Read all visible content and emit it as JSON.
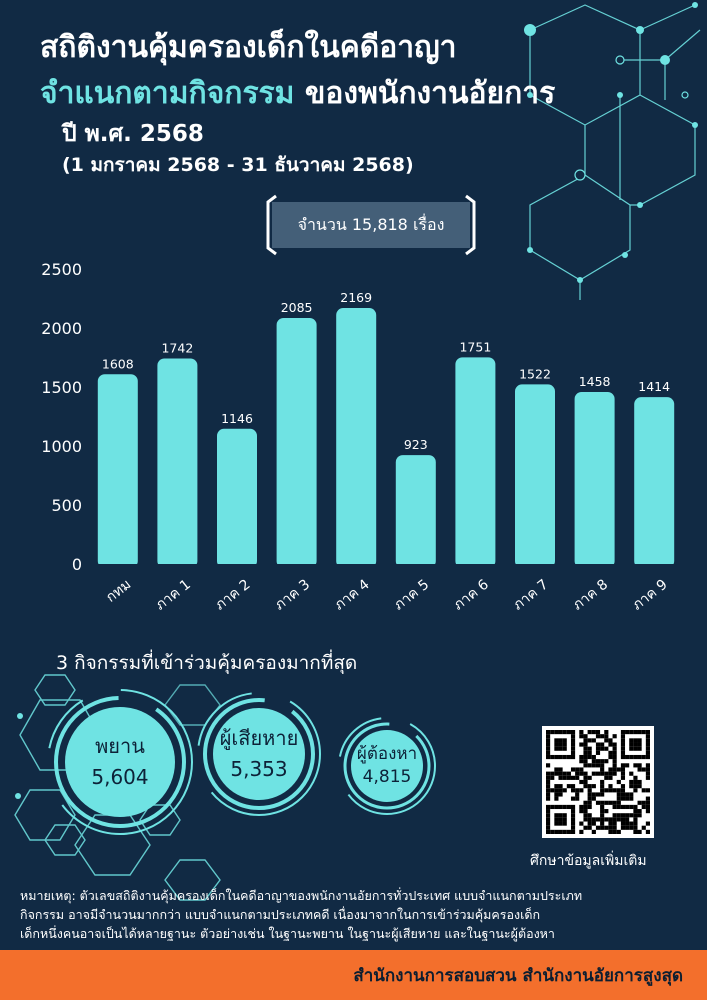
{
  "header": {
    "title_line1": "สถิติงานคุ้มครองเด็กในคดีอาญา",
    "title_line2_accent": "จำแนกตามกิจกรรม",
    "title_line2_rest": "ของพนักงานอัยการ",
    "year": "ปี พ.ศ. 2568",
    "date_range": "(1 มกราคม 2568 - 31 ธันวาคม 2568)",
    "total": "จำนวน 15,818 เรื่อง"
  },
  "colors": {
    "background": "#112a44",
    "accent": "#6fe3e3",
    "footer": "#f36f2c"
  },
  "chart_data": {
    "type": "bar",
    "categories": [
      "กทม",
      "ภาค 1",
      "ภาค 2",
      "ภาค 3",
      "ภาค 4",
      "ภาค 5",
      "ภาค 6",
      "ภาค 7",
      "ภาค 8",
      "ภาค 9"
    ],
    "values": [
      1608,
      1742,
      1146,
      2085,
      2169,
      923,
      1751,
      1522,
      1458,
      1414
    ],
    "yticks": [
      0,
      500,
      1000,
      1500,
      2000,
      2500
    ],
    "ylim": [
      0,
      2500
    ],
    "grid": false,
    "bar_color": "#6fe3e3",
    "data_labels": true
  },
  "top3": {
    "heading": "3 กิจกรรมที่เข้าร่วมคุ้มครองมากที่สุด",
    "items": [
      {
        "label": "พยาน",
        "value": "5,604"
      },
      {
        "label": "ผู้เสียหาย",
        "value": "5,353"
      },
      {
        "label": "ผู้ต้องหา",
        "value": "4,815"
      }
    ]
  },
  "qr": {
    "caption": "ศึกษาข้อมูลเพิ่มเติม"
  },
  "note": {
    "line1": "หมายเหตุ: ตัวเลขสถิติงานคุ้มครองเด็กในคดีอาญาของพนักงานอัยการทั่วประเทศ แบบจำแนกตามประเภท",
    "line2": "กิจกรรม อาจมีจำนวนมากกว่า แบบจำแนกตามประเภทคดี เนื่องมาจากในการเข้าร่วมคุ้มครองเด็ก",
    "line3": "เด็กหนึ่งคนอาจเป็นได้หลายฐานะ ตัวอย่างเช่น ในฐานะพยาน ในฐานะผู้เสียหาย และในฐานะผู้ต้องหา"
  },
  "footer": {
    "text": "สำนักงานการสอบสวน สำนักงานอัยการสูงสุด"
  }
}
